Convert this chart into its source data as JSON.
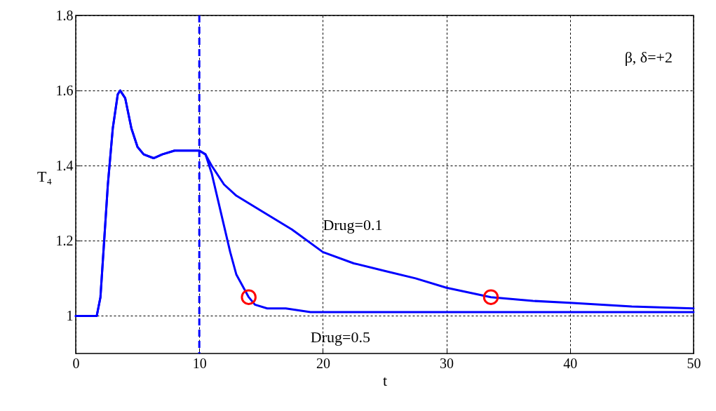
{
  "chart_data": {
    "type": "line",
    "xlabel": "t",
    "ylabel": "T₄",
    "xlim": [
      0,
      50
    ],
    "ylim": [
      0.9,
      1.8
    ],
    "xticks": [
      0,
      10,
      20,
      30,
      40,
      50
    ],
    "yticks": [
      1,
      1.2,
      1.4,
      1.6,
      1.8
    ],
    "grid": true,
    "line_style": "solid",
    "annotations": [
      "β, δ=+2"
    ],
    "ref_lines": [
      {
        "axis": "x",
        "value": 10,
        "color": "#0000ff",
        "line_style": "dashed"
      }
    ],
    "series": [
      {
        "name": "Drug=0.1",
        "color": "#0000ff",
        "x": [
          0,
          1.7,
          2,
          2.3,
          2.6,
          3,
          3.4,
          3.6,
          4,
          4.5,
          5,
          5.5,
          6.3,
          7,
          8,
          10,
          10.5,
          11,
          12,
          13,
          15,
          17.5,
          20,
          22.5,
          25,
          27.5,
          30,
          33.6,
          37,
          40,
          45,
          50
        ],
        "values": [
          1,
          1,
          1.05,
          1.2,
          1.35,
          1.5,
          1.59,
          1.6,
          1.58,
          1.5,
          1.45,
          1.43,
          1.42,
          1.43,
          1.44,
          1.44,
          1.43,
          1.4,
          1.35,
          1.32,
          1.28,
          1.23,
          1.17,
          1.14,
          1.12,
          1.1,
          1.075,
          1.05,
          1.04,
          1.035,
          1.025,
          1.02
        ]
      },
      {
        "name": "Drug=0.5",
        "color": "#0000ff",
        "x": [
          0,
          1.7,
          2,
          2.3,
          2.6,
          3,
          3.4,
          3.6,
          4,
          4.5,
          5,
          5.5,
          6.3,
          7,
          8,
          10,
          10.5,
          11,
          11.5,
          12,
          12.5,
          13,
          14,
          14.5,
          15.5,
          17,
          19,
          30,
          40,
          50
        ],
        "values": [
          1,
          1,
          1.05,
          1.2,
          1.35,
          1.5,
          1.59,
          1.6,
          1.58,
          1.5,
          1.45,
          1.43,
          1.42,
          1.43,
          1.44,
          1.44,
          1.43,
          1.38,
          1.31,
          1.24,
          1.17,
          1.11,
          1.05,
          1.03,
          1.02,
          1.02,
          1.01,
          1.01,
          1.01,
          1.01
        ]
      },
      {
        "type": "scatter",
        "color": "#ff0000",
        "marker": "circle",
        "x": [
          14,
          33.6
        ],
        "values": [
          1.05,
          1.05
        ]
      }
    ]
  }
}
